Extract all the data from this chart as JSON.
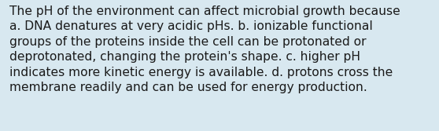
{
  "lines": [
    "The pH of the environment can affect microbial growth because",
    "a. DNA denatures at very acidic pHs. b. ionizable functional",
    "groups of the proteins inside the cell can be protonated or",
    "deprotonated, changing the protein's shape. c. higher pH",
    "indicates more kinetic energy is available. d. protons cross the",
    "membrane readily and can be used for energy production."
  ],
  "background_color": "#d8e8f0",
  "text_color": "#1a1a1a",
  "font_size": 11.2,
  "fig_width": 5.58,
  "fig_height": 1.67,
  "dpi": 100
}
